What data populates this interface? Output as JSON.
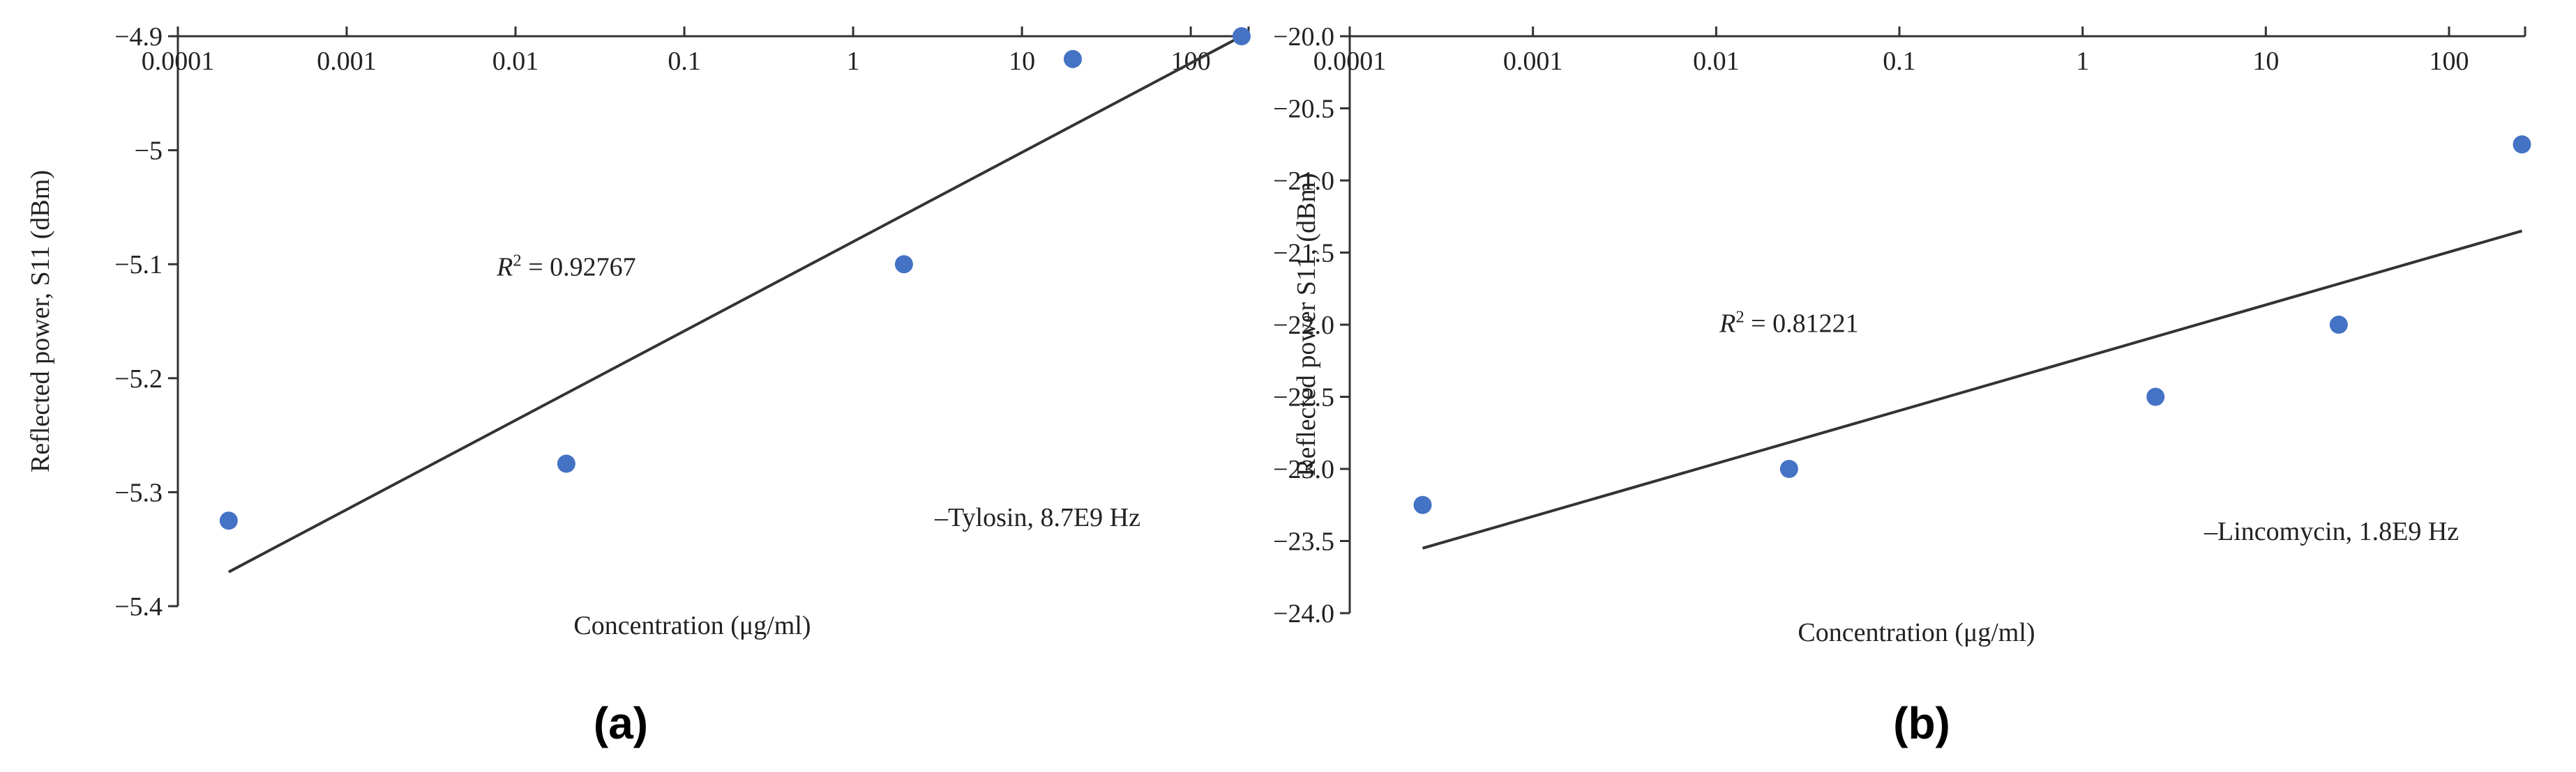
{
  "chart_data": [
    {
      "type": "scatter",
      "panel_label": "(a)",
      "xscale": "log",
      "xticks": [
        "0.0001",
        "0.001",
        "0.01",
        "0.1",
        "1",
        "10",
        "100"
      ],
      "xtick_values": [
        0.0001,
        0.001,
        0.01,
        0.1,
        1,
        10,
        100
      ],
      "xlim": [
        0.0001,
        220
      ],
      "ylim": [
        -5.4,
        -4.9
      ],
      "yticks": [
        "-4.9",
        "-5",
        "-5.1",
        "-5.2",
        "-5.3",
        "-5.4"
      ],
      "ytick_values": [
        -4.9,
        -5.0,
        -5.1,
        -5.2,
        -5.3,
        -5.4
      ],
      "xaxis_position": "top",
      "xlabel": "Concentration (μg/ml)",
      "ylabel": "Reflected power, S11 (dBm)",
      "series": [
        {
          "name": "Tylosin, 8.7E9 Hz",
          "color": "#4472c4",
          "x": [
            0.0002,
            0.02,
            2,
            20,
            200
          ],
          "y": [
            -5.325,
            -5.275,
            -5.1,
            -4.92,
            -4.9
          ]
        }
      ],
      "trendline": {
        "x": [
          0.0002,
          200
        ],
        "y": [
          -5.37,
          -4.9
        ],
        "color": "#333333"
      },
      "annotation": {
        "r2_label": "R",
        "r2_sup": "2",
        "r2_value": " = 0.92767",
        "r2_x": 0.02,
        "r2_y": -5.11
      },
      "legend_text": "–Tylosin, 8.7E9 Hz",
      "legend_position": "bottom-right",
      "grid": false
    },
    {
      "type": "scatter",
      "panel_label": "(b)",
      "xscale": "log",
      "xticks": [
        "0.0001",
        "0.001",
        "0.01",
        "0.1",
        "1",
        "10",
        "100"
      ],
      "xtick_values": [
        0.0001,
        0.001,
        0.01,
        0.1,
        1,
        10,
        100
      ],
      "xlim": [
        0.0001,
        260
      ],
      "ylim": [
        -24.0,
        -20.0
      ],
      "yticks": [
        "-20.0",
        "-20.5",
        "-21.0",
        "-21.5",
        "-22.0",
        "-22.5",
        "-23.0",
        "-23.5",
        "-24.0"
      ],
      "ytick_values": [
        -20.0,
        -20.5,
        -21.0,
        -21.5,
        -22.0,
        -22.5,
        -23.0,
        -23.5,
        -24.0
      ],
      "xaxis_position": "top",
      "xlabel": "Concentration (μg/ml)",
      "ylabel": "Reflected power S11, (dBm)",
      "series": [
        {
          "name": "Lincomycin, 1.8E9 Hz",
          "color": "#4472c4",
          "x": [
            0.00025,
            0.025,
            2.5,
            25,
            250
          ],
          "y": [
            -23.25,
            -23.0,
            -22.5,
            -22.0,
            -20.75
          ]
        }
      ],
      "trendline": {
        "x": [
          0.00025,
          250
        ],
        "y": [
          -23.55,
          -21.35
        ],
        "color": "#333333"
      },
      "annotation": {
        "r2_label": "R",
        "r2_sup": "2",
        "r2_value": " = 0.81221",
        "r2_x": 0.025,
        "r2_y": -22.05
      },
      "legend_text": "–Lincomycin, 1.8E9 Hz",
      "legend_position": "bottom-right",
      "grid": false
    }
  ]
}
